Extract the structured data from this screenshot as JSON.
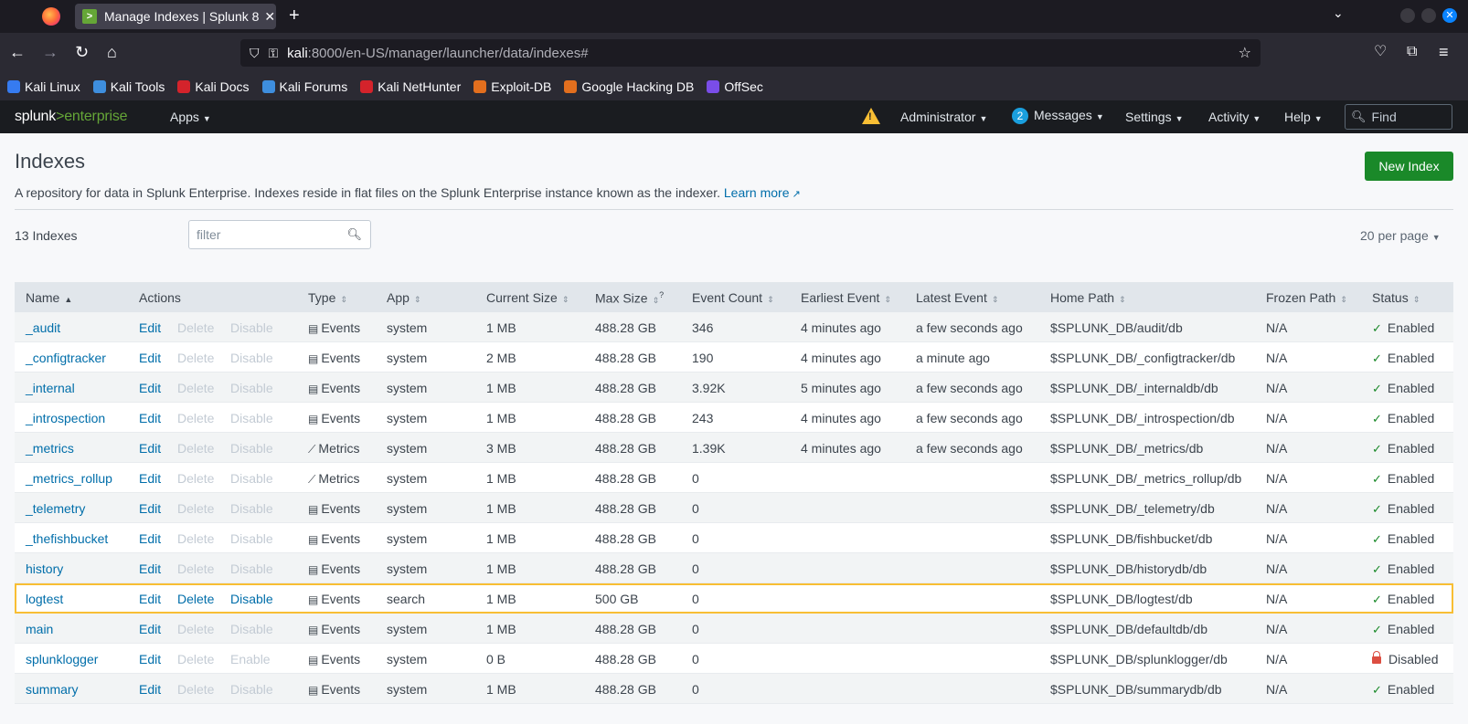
{
  "browser": {
    "tab_title": "Manage Indexes | Splunk 8",
    "tab_close": "✕",
    "new_tab": "+",
    "url_host": "kali",
    "url_path": ":8000/en-US/manager/launcher/data/indexes#",
    "bookmarks": [
      {
        "label": "Kali Linux",
        "color": "#367bf0"
      },
      {
        "label": "Kali Tools",
        "color": "#3e8ede"
      },
      {
        "label": "Kali Docs",
        "color": "#d4232b"
      },
      {
        "label": "Kali Forums",
        "color": "#3e8ede"
      },
      {
        "label": "Kali NetHunter",
        "color": "#d4232b"
      },
      {
        "label": "Exploit-DB",
        "color": "#e36f1e"
      },
      {
        "label": "Google Hacking DB",
        "color": "#e36f1e"
      },
      {
        "label": "OffSec",
        "color": "#7a4de8"
      }
    ]
  },
  "splunkbar": {
    "logo_splunk": "splunk",
    "logo_gt": ">",
    "logo_enterprise": "enterprise",
    "apps": "Apps",
    "administrator": "Administrator",
    "messages_count": "2",
    "messages": "Messages",
    "settings": "Settings",
    "activity": "Activity",
    "help": "Help",
    "find_placeholder": "Find",
    "warning_glyph": "!"
  },
  "page": {
    "title": "Indexes",
    "new_index": "New Index",
    "description": "A repository for data in Splunk Enterprise. Indexes reside in flat files on the Splunk Enterprise instance known as the indexer.",
    "learn_more": "Learn more",
    "count": "13 Indexes",
    "filter_placeholder": "filter",
    "per_page": "20 per page"
  },
  "table": {
    "headers": {
      "name": "Name",
      "actions": "Actions",
      "type": "Type",
      "app": "App",
      "current_size": "Current Size",
      "max_size": "Max Size",
      "max_size_help": "?",
      "event_count": "Event Count",
      "earliest_event": "Earliest Event",
      "latest_event": "Latest Event",
      "home_path": "Home Path",
      "frozen_path": "Frozen Path",
      "status": "Status"
    },
    "rows": [
      {
        "name": "_audit",
        "edit": "Edit",
        "delete": "Delete",
        "toggle": "Disable",
        "type": "Events",
        "app": "system",
        "current_size": "1 MB",
        "max_size": "488.28 GB",
        "event_count": "346",
        "earliest": "4 minutes ago",
        "latest": "a few seconds ago",
        "home_path": "$SPLUNK_DB/audit/db",
        "frozen_path": "N/A",
        "status": "Enabled"
      },
      {
        "name": "_configtracker",
        "edit": "Edit",
        "delete": "Delete",
        "toggle": "Disable",
        "type": "Events",
        "app": "system",
        "current_size": "2 MB",
        "max_size": "488.28 GB",
        "event_count": "190",
        "earliest": "4 minutes ago",
        "latest": "a minute ago",
        "home_path": "$SPLUNK_DB/_configtracker/db",
        "frozen_path": "N/A",
        "status": "Enabled"
      },
      {
        "name": "_internal",
        "edit": "Edit",
        "delete": "Delete",
        "toggle": "Disable",
        "type": "Events",
        "app": "system",
        "current_size": "1 MB",
        "max_size": "488.28 GB",
        "event_count": "3.92K",
        "earliest": "5 minutes ago",
        "latest": "a few seconds ago",
        "home_path": "$SPLUNK_DB/_internaldb/db",
        "frozen_path": "N/A",
        "status": "Enabled"
      },
      {
        "name": "_introspection",
        "edit": "Edit",
        "delete": "Delete",
        "toggle": "Disable",
        "type": "Events",
        "app": "system",
        "current_size": "1 MB",
        "max_size": "488.28 GB",
        "event_count": "243",
        "earliest": "4 minutes ago",
        "latest": "a few seconds ago",
        "home_path": "$SPLUNK_DB/_introspection/db",
        "frozen_path": "N/A",
        "status": "Enabled"
      },
      {
        "name": "_metrics",
        "edit": "Edit",
        "delete": "Delete",
        "toggle": "Disable",
        "type": "Metrics",
        "app": "system",
        "current_size": "3 MB",
        "max_size": "488.28 GB",
        "event_count": "1.39K",
        "earliest": "4 minutes ago",
        "latest": "a few seconds ago",
        "home_path": "$SPLUNK_DB/_metrics/db",
        "frozen_path": "N/A",
        "status": "Enabled"
      },
      {
        "name": "_metrics_rollup",
        "edit": "Edit",
        "delete": "Delete",
        "toggle": "Disable",
        "type": "Metrics",
        "app": "system",
        "current_size": "1 MB",
        "max_size": "488.28 GB",
        "event_count": "0",
        "earliest": "",
        "latest": "",
        "home_path": "$SPLUNK_DB/_metrics_rollup/db",
        "frozen_path": "N/A",
        "status": "Enabled"
      },
      {
        "name": "_telemetry",
        "edit": "Edit",
        "delete": "Delete",
        "toggle": "Disable",
        "type": "Events",
        "app": "system",
        "current_size": "1 MB",
        "max_size": "488.28 GB",
        "event_count": "0",
        "earliest": "",
        "latest": "",
        "home_path": "$SPLUNK_DB/_telemetry/db",
        "frozen_path": "N/A",
        "status": "Enabled"
      },
      {
        "name": "_thefishbucket",
        "edit": "Edit",
        "delete": "Delete",
        "toggle": "Disable",
        "type": "Events",
        "app": "system",
        "current_size": "1 MB",
        "max_size": "488.28 GB",
        "event_count": "0",
        "earliest": "",
        "latest": "",
        "home_path": "$SPLUNK_DB/fishbucket/db",
        "frozen_path": "N/A",
        "status": "Enabled"
      },
      {
        "name": "history",
        "edit": "Edit",
        "delete": "Delete",
        "toggle": "Disable",
        "type": "Events",
        "app": "system",
        "current_size": "1 MB",
        "max_size": "488.28 GB",
        "event_count": "0",
        "earliest": "",
        "latest": "",
        "home_path": "$SPLUNK_DB/historydb/db",
        "frozen_path": "N/A",
        "status": "Enabled"
      },
      {
        "name": "logtest",
        "edit": "Edit",
        "delete": "Delete",
        "toggle": "Disable",
        "type": "Events",
        "app": "search",
        "current_size": "1 MB",
        "max_size": "500 GB",
        "event_count": "0",
        "earliest": "",
        "latest": "",
        "home_path": "$SPLUNK_DB/logtest/db",
        "frozen_path": "N/A",
        "status": "Enabled"
      },
      {
        "name": "main",
        "edit": "Edit",
        "delete": "Delete",
        "toggle": "Disable",
        "type": "Events",
        "app": "system",
        "current_size": "1 MB",
        "max_size": "488.28 GB",
        "event_count": "0",
        "earliest": "",
        "latest": "",
        "home_path": "$SPLUNK_DB/defaultdb/db",
        "frozen_path": "N/A",
        "status": "Enabled"
      },
      {
        "name": "splunklogger",
        "edit": "Edit",
        "delete": "Delete",
        "toggle": "Enable",
        "type": "Events",
        "app": "system",
        "current_size": "0 B",
        "max_size": "488.28 GB",
        "event_count": "0",
        "earliest": "",
        "latest": "",
        "home_path": "$SPLUNK_DB/splunklogger/db",
        "frozen_path": "N/A",
        "status": "Disabled"
      },
      {
        "name": "summary",
        "edit": "Edit",
        "delete": "Delete",
        "toggle": "Disable",
        "type": "Events",
        "app": "system",
        "current_size": "1 MB",
        "max_size": "488.28 GB",
        "event_count": "0",
        "earliest": "",
        "latest": "",
        "home_path": "$SPLUNK_DB/summarydb/db",
        "frozen_path": "N/A",
        "status": "Enabled"
      }
    ]
  }
}
